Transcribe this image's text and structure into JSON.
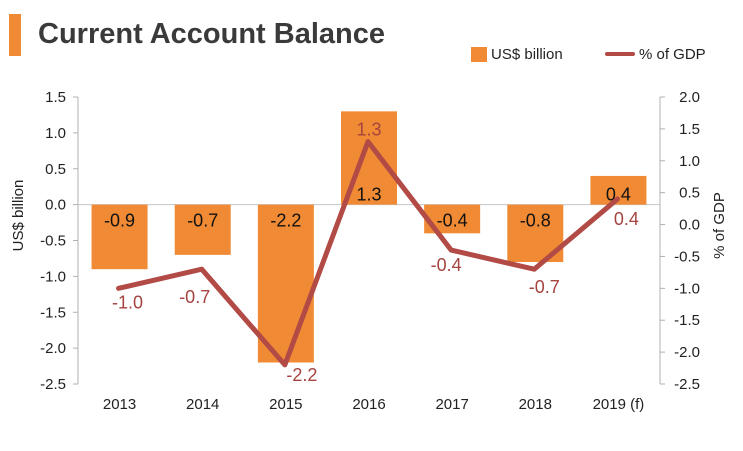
{
  "title": "Current Account Balance",
  "legend": {
    "bars": "US$ billion",
    "line": "% of GDP"
  },
  "colors": {
    "bars": "#f08a34",
    "line": "#b24a45",
    "line_label": "#a5433f",
    "title_accent": "#f08a34"
  },
  "chart_data": {
    "type": "bar",
    "title": "Current Account Balance",
    "categories": [
      "2013",
      "2014",
      "2015",
      "2016",
      "2017",
      "2018",
      "2019 (f)"
    ],
    "series": [
      {
        "name": "US$ billion",
        "type": "bar",
        "axis": "left",
        "values": [
          -0.9,
          -0.7,
          -2.2,
          1.3,
          -0.4,
          -0.8,
          0.4
        ],
        "labels": [
          "-0.9",
          "-0.7",
          "-2.2",
          "1.3",
          "-0.4",
          "-0.8",
          "0.4"
        ]
      },
      {
        "name": "% of GDP",
        "type": "line",
        "axis": "right",
        "values": [
          -1.0,
          -0.7,
          -2.2,
          1.3,
          -0.4,
          -0.7,
          0.4
        ],
        "labels": [
          "-1.0",
          "-0.7",
          "-2.2",
          "1.3",
          "-0.4",
          "-0.7",
          "0.4"
        ]
      }
    ],
    "ylabel": "US$ billion",
    "y2label": "% of GDP",
    "ylim": [
      -2.5,
      1.5
    ],
    "y2lim": [
      -2.5,
      2.0
    ],
    "yticks": [
      "1.5",
      "1.0",
      "0.5",
      "0.0",
      "-0.5",
      "-1.0",
      "-1.5",
      "-2.0",
      "-2.5"
    ],
    "y2ticks": [
      "2.0",
      "1.5",
      "1.0",
      "0.5",
      "0.0",
      "-0.5",
      "-1.0",
      "-1.5",
      "-2.0",
      "-2.5"
    ],
    "grid": false,
    "legend_position": "top-right"
  }
}
